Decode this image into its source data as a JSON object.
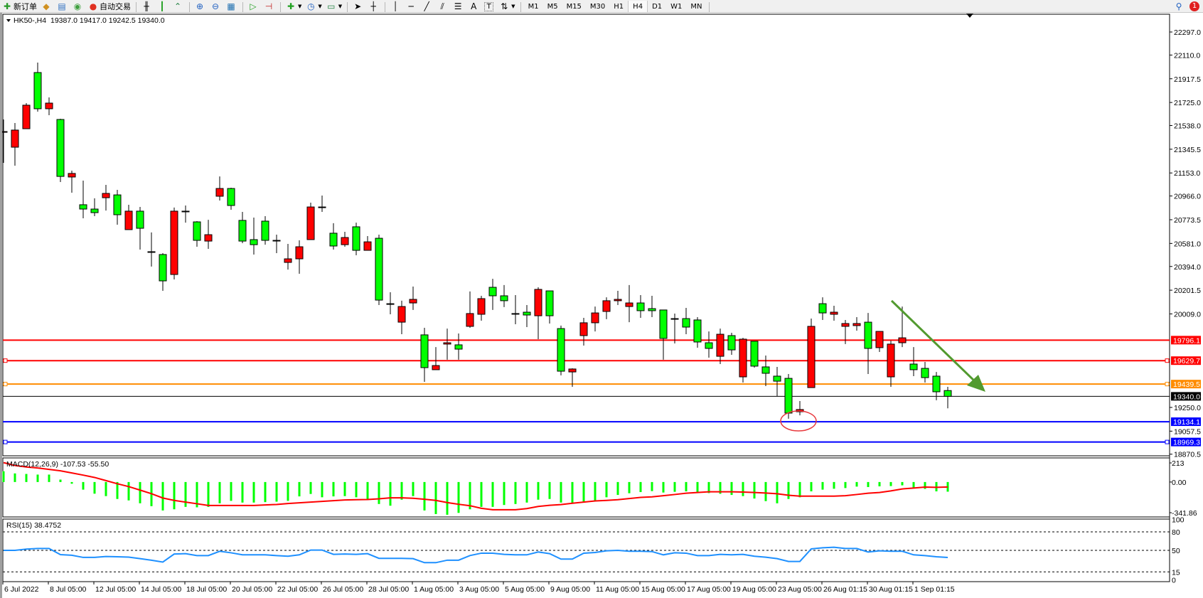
{
  "toolbar": {
    "new_order": "新订单",
    "auto_trading": "自动交易",
    "timeframes": [
      "M1",
      "M5",
      "M15",
      "M30",
      "H1",
      "H4",
      "D1",
      "W1",
      "MN"
    ],
    "selected_timeframe": "H4",
    "icons": [
      "new-order-icon",
      "gold-icon",
      "history-icon",
      "signals-icon",
      "auto-trading-icon",
      "bar-chart-icon",
      "candlestick-icon",
      "line-chart-icon",
      "zoom-in-icon",
      "zoom-out-icon",
      "tile-windows-icon",
      "auto-scroll-icon",
      "chart-shift-icon",
      "indicators-icon",
      "periods-icon",
      "templates-icon",
      "cursor-icon",
      "crosshair-icon",
      "vertical-line-icon",
      "horizontal-line-icon",
      "trendline-icon",
      "equidistant-channel-icon",
      "fibonacci-icon",
      "text-icon",
      "text-label-icon",
      "arrows-icon",
      "search-icon",
      "notification-icon"
    ],
    "text_tool": "A",
    "label_tool": "T",
    "notification_count": "1"
  },
  "header": {
    "symbol": "HK50-,H4",
    "ohlc": "19387.0 19417.0 19242.5 19340.0"
  },
  "macd_label": "MACD(12,26,9) -107.53 -55.50",
  "rsi_label": "RSI(15) 38.4752",
  "chart_data": {
    "type": "candlestick",
    "symbol": "HK50-",
    "timeframe": "H4",
    "up_color": "#ff0000",
    "down_color": "#00ff00",
    "outline_color": "#000000",
    "ohlc_order": [
      "open",
      "high",
      "low",
      "close"
    ],
    "candles": [
      [
        21483,
        21587,
        21235,
        21489
      ],
      [
        21362,
        21558,
        21212,
        21501
      ],
      [
        21512,
        21720,
        21512,
        21703
      ],
      [
        21968,
        22049,
        21651,
        21674
      ],
      [
        21674,
        21766,
        21622,
        21720
      ],
      [
        21587,
        21593,
        21079,
        21125
      ],
      [
        21120,
        21172,
        20993,
        21149
      ],
      [
        20895,
        21091,
        20785,
        20860
      ],
      [
        20860,
        20947,
        20802,
        20831
      ],
      [
        20952,
        21056,
        20848,
        20987
      ],
      [
        20975,
        21016,
        20733,
        20814
      ],
      [
        20693,
        20895,
        20693,
        20843
      ],
      [
        20843,
        20877,
        20531,
        20704
      ],
      [
        20514,
        20670,
        20393,
        20514
      ],
      [
        20491,
        20502,
        20196,
        20277
      ],
      [
        20329,
        20872,
        20289,
        20843
      ],
      [
        20843,
        20889,
        20750,
        20843
      ],
      [
        20756,
        20762,
        20554,
        20606
      ],
      [
        20600,
        20773,
        20537,
        20652
      ],
      [
        20964,
        21125,
        20929,
        21027
      ],
      [
        21027,
        21033,
        20854,
        20889
      ],
      [
        20768,
        20837,
        20583,
        20600
      ],
      [
        20612,
        20791,
        20491,
        20571
      ],
      [
        20762,
        20802,
        20571,
        20606
      ],
      [
        20606,
        20652,
        20502,
        20606
      ],
      [
        20427,
        20577,
        20369,
        20456
      ],
      [
        20456,
        20606,
        20335,
        20554
      ],
      [
        20612,
        20912,
        20612,
        20877
      ],
      [
        20877,
        20970,
        20837,
        20877
      ],
      [
        20664,
        20745,
        20531,
        20560
      ],
      [
        20571,
        20675,
        20554,
        20629
      ],
      [
        20716,
        20750,
        20485,
        20525
      ],
      [
        20525,
        20641,
        20525,
        20594
      ],
      [
        20623,
        20652,
        20081,
        20121
      ],
      [
        20092,
        20185,
        20006,
        20092
      ],
      [
        19942,
        20116,
        19844,
        20069
      ],
      [
        20098,
        20231,
        20041,
        20127
      ],
      [
        19839,
        19896,
        19458,
        19573
      ],
      [
        19556,
        19740,
        19556,
        19590
      ],
      [
        19764,
        19890,
        19637,
        19775
      ],
      [
        19758,
        19850,
        19637,
        19723
      ],
      [
        19908,
        20191,
        19896,
        20012
      ],
      [
        20006,
        20156,
        19954,
        20133
      ],
      [
        20225,
        20294,
        20041,
        20156
      ],
      [
        20156,
        20243,
        20064,
        20116
      ],
      [
        20012,
        20162,
        19925,
        20012
      ],
      [
        20023,
        20081,
        19902,
        20000
      ],
      [
        19994,
        20225,
        19804,
        20208
      ],
      [
        20196,
        20196,
        19931,
        19994
      ],
      [
        19890,
        19914,
        19510,
        19544
      ],
      [
        19538,
        19567,
        19417,
        19562
      ],
      [
        19833,
        19977,
        19752,
        19937
      ],
      [
        19937,
        20069,
        19867,
        20017
      ],
      [
        20029,
        20144,
        19966,
        20116
      ],
      [
        20116,
        20196,
        20081,
        20127
      ],
      [
        20069,
        20243,
        19942,
        20098
      ],
      [
        20098,
        20162,
        19977,
        20035
      ],
      [
        20052,
        20156,
        19983,
        20035
      ],
      [
        20041,
        20041,
        19637,
        19810
      ],
      [
        19971,
        20012,
        19769,
        19971
      ],
      [
        19971,
        20058,
        19844,
        19902
      ],
      [
        19960,
        19983,
        19735,
        19781
      ],
      [
        19775,
        19867,
        19654,
        19729
      ],
      [
        19665,
        19890,
        19602,
        19844
      ],
      [
        19833,
        19856,
        19677,
        19717
      ],
      [
        19498,
        19815,
        19452,
        19804
      ],
      [
        19787,
        19787,
        19573,
        19585
      ],
      [
        19579,
        19671,
        19423,
        19527
      ],
      [
        19504,
        19579,
        19342,
        19463
      ],
      [
        19486,
        19521,
        19158,
        19204
      ],
      [
        19215,
        19302,
        19186,
        19233
      ],
      [
        19411,
        19971,
        19411,
        19908
      ],
      [
        20092,
        20144,
        19960,
        20017
      ],
      [
        20006,
        20075,
        19954,
        20023
      ],
      [
        19908,
        19960,
        19764,
        19931
      ],
      [
        19914,
        19983,
        19873,
        19931
      ],
      [
        19942,
        20017,
        19521,
        19729
      ],
      [
        19735,
        19867,
        19700,
        19867
      ],
      [
        19498,
        19792,
        19417,
        19764
      ],
      [
        19775,
        20069,
        19740,
        19815
      ],
      [
        19602,
        19740,
        19504,
        19556
      ],
      [
        19567,
        19619,
        19452,
        19492
      ],
      [
        19504,
        19538,
        19308,
        19377
      ],
      [
        19387,
        19417,
        19242.5,
        19340
      ]
    ],
    "x_tick_labels": [
      "6 Jul 2022",
      "8 Jul 05:00",
      "12 Jul 05:00",
      "14 Jul 05:00",
      "18 Jul 05:00",
      "20 Jul 05:00",
      "22 Jul 05:00",
      "26 Jul 05:00",
      "28 Jul 05:00",
      "1 Aug 05:00",
      "3 Aug 05:00",
      "5 Aug 05:00",
      "9 Aug 05:00",
      "11 Aug 05:00",
      "15 Aug 05:00",
      "17 Aug 05:00",
      "19 Aug 05:00",
      "23 Aug 05:00",
      "26 Aug 01:15",
      "30 Aug 01:15",
      "1 Sep 01:15"
    ],
    "x_tick_every_bars": 4,
    "y_tick_labels": [
      "22297.0",
      "22110.0",
      "21917.5",
      "21725.0",
      "21538.0",
      "21345.5",
      "21153.0",
      "20966.0",
      "20773.5",
      "20581.0",
      "20394.0",
      "20201.5",
      "20009.0",
      "19250.0",
      "19057.5",
      "18870.5"
    ],
    "ylim": [
      18870.5,
      22297.0
    ],
    "horizontal_lines": [
      {
        "value": "19796.1",
        "color": "#ff0000"
      },
      {
        "value": "19629.7",
        "color": "#ff0000"
      },
      {
        "value": "19439.5",
        "color": "#ff8c00"
      },
      {
        "value": "19340.0",
        "color": "#000000"
      },
      {
        "value": "19134.1",
        "color": "#0000ff"
      },
      {
        "value": "18969.3",
        "color": "#0000ff"
      }
    ],
    "annotations": [
      {
        "type": "arrow",
        "color": "#529a2f",
        "from_price": 20116,
        "to_price": 19377
      },
      {
        "type": "ellipse",
        "color": "#e8383d",
        "price": 19140
      }
    ],
    "macd": {
      "params": [
        12,
        26,
        9
      ],
      "histogram_color": "#00ff00",
      "signal_color": "#ff0000",
      "axis_labels": [
        "213",
        "0.00",
        "-341.86"
      ],
      "ylim": [
        -341.86,
        213
      ],
      "histogram": [
        120,
        96,
        90,
        83,
        83,
        27,
        -19,
        -85,
        -130,
        -157,
        -189,
        -205,
        -237,
        -269,
        -317,
        -304,
        -277,
        -282,
        -277,
        -237,
        -210,
        -229,
        -229,
        -224,
        -219,
        -210,
        -160,
        -133,
        -170,
        -160,
        -157,
        -170,
        -197,
        -245,
        -264,
        -197,
        -157,
        -317,
        -357,
        -365,
        -344,
        -304,
        -277,
        -277,
        -256,
        -245,
        -229,
        -197,
        -189,
        -229,
        -237,
        -229,
        -210,
        -170,
        -144,
        -125,
        -112,
        -101,
        -117,
        -109,
        -104,
        -117,
        -123,
        -131,
        -144,
        -157,
        -184,
        -213,
        -237,
        -189,
        -170,
        -104,
        -85,
        -75,
        -67,
        -51,
        -56,
        -48,
        -45,
        -37,
        -69,
        -77,
        -104,
        -107.53
      ],
      "signal": [
        216,
        184,
        168,
        157,
        141,
        125,
        101,
        77,
        51,
        16,
        -19,
        -51,
        -90,
        -130,
        -178,
        -205,
        -224,
        -242,
        -261,
        -261,
        -261,
        -261,
        -261,
        -255,
        -250,
        -240,
        -232,
        -224,
        -216,
        -208,
        -200,
        -197,
        -195,
        -187,
        -176,
        -176,
        -181,
        -192,
        -205,
        -229,
        -248,
        -264,
        -293,
        -309,
        -309,
        -309,
        -296,
        -272,
        -259,
        -251,
        -237,
        -224,
        -211,
        -205,
        -197,
        -184,
        -171,
        -165,
        -152,
        -139,
        -125,
        -117,
        -109,
        -109,
        -109,
        -112,
        -117,
        -123,
        -131,
        -147,
        -157,
        -157,
        -157,
        -157,
        -152,
        -139,
        -125,
        -117,
        -99,
        -77,
        -67,
        -56,
        -59,
        -55.5
      ]
    },
    "rsi": {
      "period": 15,
      "color": "#1e90ff",
      "levels": [
        80,
        50,
        15
      ],
      "axis_labels": [
        "100",
        "80",
        "50",
        "15",
        "0"
      ],
      "ylim": [
        0,
        100
      ],
      "values": [
        50,
        50,
        52,
        53,
        53,
        43,
        42,
        38.5,
        38.5,
        40,
        39.6,
        39,
        36.5,
        34,
        31,
        44,
        44.6,
        41.5,
        41.5,
        48.5,
        46,
        42.7,
        42.7,
        42.7,
        41.5,
        40.4,
        42.7,
        50.4,
        50.4,
        43.5,
        44,
        43.5,
        44.6,
        37,
        37,
        37,
        36.5,
        30,
        30,
        34,
        34,
        41.5,
        45.4,
        45.4,
        43.5,
        42.7,
        42.7,
        47.3,
        44.6,
        35.8,
        35.8,
        45.4,
        46.5,
        49.2,
        50,
        48.5,
        48.5,
        48,
        42.7,
        46,
        45.4,
        41.5,
        41.5,
        43.5,
        42.7,
        43.5,
        40.4,
        38.8,
        36.5,
        32,
        32,
        52.3,
        54.2,
        55,
        53,
        53,
        47.3,
        49.2,
        48.5,
        48.5,
        42.7,
        41.5,
        39.6,
        38.4752
      ]
    }
  }
}
